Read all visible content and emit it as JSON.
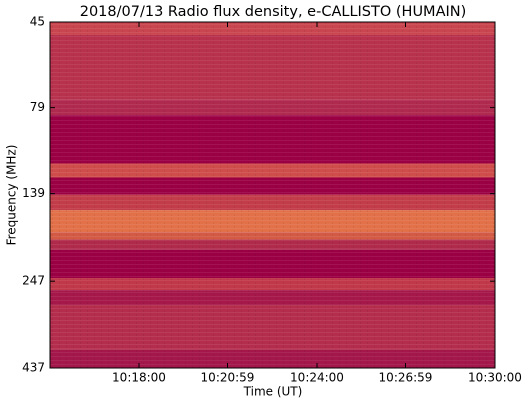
{
  "chart_data": {
    "type": "heatmap",
    "title": "2018/07/13  Radio flux density, e-CALLISTO (HUMAIN)",
    "xlabel": "Time (UT)",
    "ylabel": "Frequency (MHz)",
    "xlim": [
      "10:15:00",
      "10:30:00"
    ],
    "xticks": [
      "10:18:00",
      "10:20:59",
      "10:24:00",
      "10:26:59",
      "10:30:00"
    ],
    "ylim": [
      45,
      437
    ],
    "yticks": [
      45,
      79,
      139,
      247,
      437
    ],
    "yscale": "log",
    "yinverted": true,
    "bands": [
      {
        "from": 45,
        "to": 49,
        "color": "#c94550"
      },
      {
        "from": 49,
        "to": 75,
        "color": "#b8324e"
      },
      {
        "from": 75,
        "to": 83,
        "color": "#b02a50"
      },
      {
        "from": 83,
        "to": 114,
        "color": "#9c0044"
      },
      {
        "from": 114,
        "to": 125,
        "color": "#cf4e4c"
      },
      {
        "from": 125,
        "to": 140,
        "color": "#9c0044"
      },
      {
        "from": 140,
        "to": 155,
        "color": "#c33c4a"
      },
      {
        "from": 155,
        "to": 179,
        "color": "#e27048"
      },
      {
        "from": 179,
        "to": 188,
        "color": "#d35a44"
      },
      {
        "from": 188,
        "to": 201,
        "color": "#b02a4c"
      },
      {
        "from": 201,
        "to": 242,
        "color": "#9c0044"
      },
      {
        "from": 242,
        "to": 262,
        "color": "#c0384a"
      },
      {
        "from": 262,
        "to": 289,
        "color": "#a6184a"
      },
      {
        "from": 289,
        "to": 388,
        "color": "#b42d4d"
      },
      {
        "from": 388,
        "to": 437,
        "color": "#a3174a"
      }
    ]
  }
}
